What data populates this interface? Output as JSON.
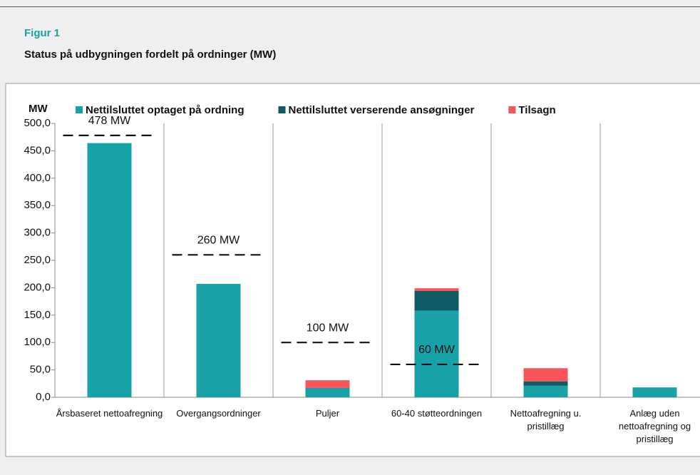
{
  "figure_label": "Figur 1",
  "chart_data": {
    "type": "bar",
    "stacked": true,
    "title": "Status på udbygningen fordelt på ordninger (MW)",
    "ylabel": "MW",
    "categories": [
      "Årsbaseret nettoafregning",
      "Overgangsordninger",
      "Puljer",
      "60-40 støtteordningen",
      "Nettoafregning u. pristillæg",
      "Anlæg uden nettoafregning og pristillæg"
    ],
    "series": [
      {
        "name": "Nettilsluttet optaget på ordning",
        "color": "#17a2a8",
        "values": [
          464,
          207,
          17,
          158,
          21,
          18
        ]
      },
      {
        "name": "Nettilsluttet verserende ansøgninger",
        "color": "#0d5c63",
        "values": [
          0,
          0,
          0,
          36,
          8,
          0
        ]
      },
      {
        "name": "Tilsagn",
        "color": "#f4545a",
        "values": [
          0,
          0,
          14,
          5,
          24,
          0
        ]
      }
    ],
    "targets": {
      "values": [
        478,
        260,
        100,
        60,
        null,
        null
      ],
      "value_labels": [
        "478 MW",
        "260 MW",
        "100 MW",
        "60 MW",
        null,
        null
      ]
    },
    "ylim": [
      0,
      500
    ],
    "yticks": [
      {
        "value": 0,
        "label": "0,0"
      },
      {
        "value": 50,
        "label": "50,0"
      },
      {
        "value": 100,
        "label": "100,0"
      },
      {
        "value": 150,
        "label": "150,0"
      },
      {
        "value": 200,
        "label": "200,0"
      },
      {
        "value": 250,
        "label": "250,0"
      },
      {
        "value": 300,
        "label": "300,0"
      },
      {
        "value": 350,
        "label": "350,0"
      },
      {
        "value": 400,
        "label": "400,0"
      },
      {
        "value": 450,
        "label": "450,0"
      },
      {
        "value": 500,
        "label": "500,0"
      }
    ],
    "legend": "top"
  }
}
